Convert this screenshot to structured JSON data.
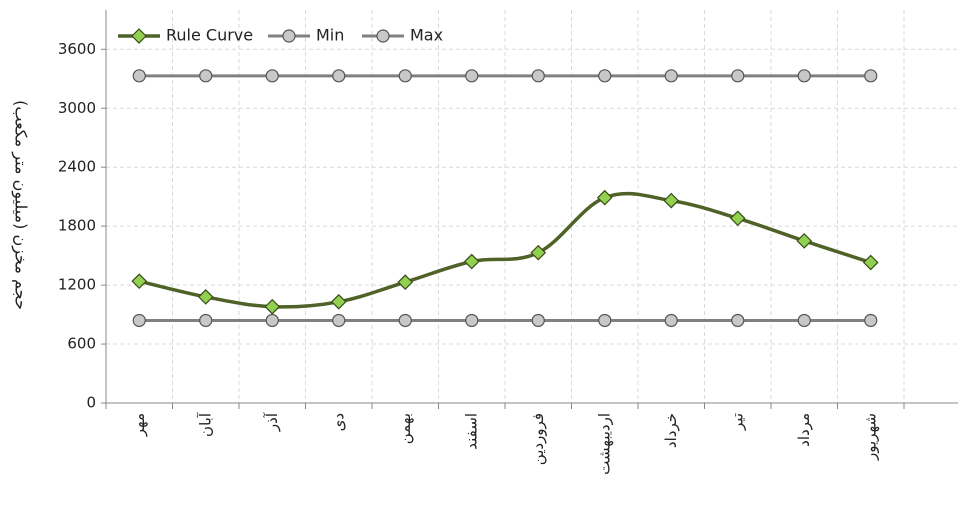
{
  "chart_data": {
    "type": "line",
    "y_label": "حجم مخزن (میلیون متر مکعب)",
    "categories": [
      "مهر",
      "آبان",
      "آذر",
      "دی",
      "بهمن",
      "اسفند",
      "فروردین",
      "اردیبهشت",
      "خرداد",
      "تیر",
      "مرداد",
      "شهریور"
    ],
    "series": [
      {
        "name": "Rule Curve",
        "color": "#4f6228",
        "marker_color": "#92d050",
        "marker": "diamond",
        "smooth": true,
        "values": [
          1240,
          1080,
          980,
          1030,
          1230,
          1440,
          1530,
          2090,
          2060,
          1880,
          1650,
          1430
        ]
      },
      {
        "name": "Min",
        "color": "#808080",
        "marker_color": "#c8c8c8",
        "marker": "circle",
        "smooth": false,
        "values": [
          840,
          840,
          840,
          840,
          840,
          840,
          840,
          840,
          840,
          840,
          840,
          840
        ]
      },
      {
        "name": "Max",
        "color": "#808080",
        "marker_color": "#c8c8c8",
        "marker": "circle",
        "smooth": false,
        "values": [
          3330,
          3330,
          3330,
          3330,
          3330,
          3330,
          3330,
          3330,
          3330,
          3330,
          3330,
          3330
        ]
      }
    ],
    "ylim": [
      0,
      4000
    ],
    "yticks": [
      0,
      600,
      1200,
      1800,
      2400,
      3000,
      3600
    ],
    "grid": true,
    "legend": "top-left"
  }
}
